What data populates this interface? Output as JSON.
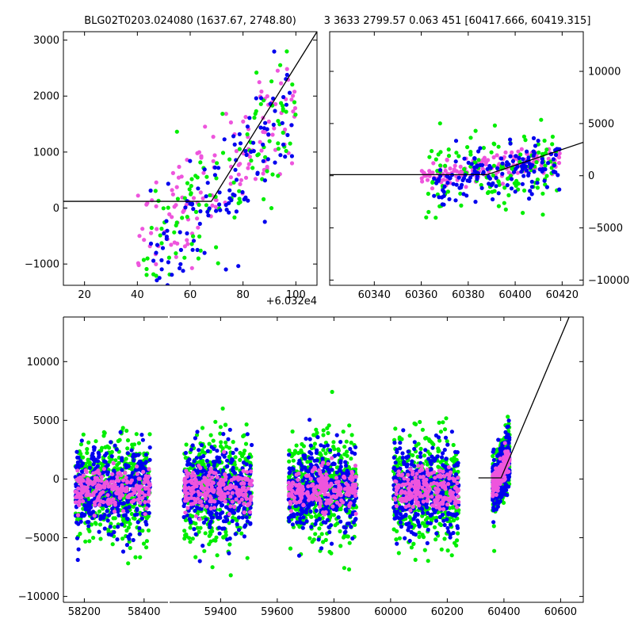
{
  "title_left": "BLG02T0203.024080 (1637.67, 2748.80)",
  "title_right": "3 3633 2799.57 0.063 451 [60417.666, 60419.315]",
  "colors": {
    "blue": "#0000ee",
    "green": "#00ee00",
    "pink": "#ee55dd",
    "model": "#000000"
  },
  "chart_data": [
    {
      "id": "top-left",
      "type": "scatter",
      "xlim": [
        12,
        108
      ],
      "ylim": [
        -1380,
        3150
      ],
      "xticks": [
        20,
        40,
        60,
        80,
        100
      ],
      "xtick_labels": [
        "20",
        "40",
        "60",
        "80",
        "100"
      ],
      "yticks": [
        -1000,
        0,
        1000,
        2000,
        3000
      ],
      "ytick_labels": [
        "−1000",
        "0",
        "1000",
        "2000",
        "3000"
      ],
      "x_offset_label": "+6.032e4",
      "model": [
        [
          12,
          120
        ],
        [
          68,
          120
        ],
        [
          108,
          3150
        ]
      ],
      "clusters": [
        {
          "x": [
            40,
            100
          ],
          "y": [
            -1300,
            2600
          ],
          "trend": [
            60,
            100,
            100,
            2000
          ],
          "spread": 500,
          "n": 140,
          "color": "pink"
        },
        {
          "x": [
            42,
            100
          ],
          "y": [
            -1300,
            2400
          ],
          "trend": [
            60,
            0,
            100,
            1800
          ],
          "spread": 600,
          "n": 110,
          "color": "green"
        },
        {
          "x": [
            45,
            100
          ],
          "y": [
            -1300,
            2300
          ],
          "trend": [
            60,
            -400,
            100,
            1700
          ],
          "spread": 550,
          "n": 120,
          "color": "blue"
        }
      ]
    },
    {
      "id": "top-right",
      "type": "scatter",
      "xlim": [
        60321,
        60429
      ],
      "ylim": [
        -10500,
        13800
      ],
      "xticks": [
        60340,
        60360,
        60380,
        60400,
        60420
      ],
      "xtick_labels": [
        "60340",
        "60360",
        "60380",
        "60400",
        "60420"
      ],
      "yticks": [
        -10000,
        -5000,
        0,
        5000,
        10000
      ],
      "ytick_labels": [
        "−10000",
        "−5000",
        "0",
        "5000",
        "10000"
      ],
      "model": [
        [
          60321,
          100
        ],
        [
          60388,
          100
        ],
        [
          60429,
          3200
        ]
      ],
      "clusters": [
        {
          "x": [
            60360,
            60419
          ],
          "y": [
            -1500,
            3500
          ],
          "trend": [
            60360,
            -300,
            60419,
            1800
          ],
          "spread": 600,
          "n": 180,
          "color": "pink"
        },
        {
          "x": [
            60362,
            60419
          ],
          "y": [
            -10000,
            8000
          ],
          "trend": [
            60360,
            -800,
            60419,
            1300
          ],
          "spread": 1800,
          "n": 130,
          "color": "green"
        },
        {
          "x": [
            60365,
            60419
          ],
          "y": [
            -10000,
            7000
          ],
          "trend": [
            60360,
            -1000,
            60419,
            1200
          ],
          "spread": 1200,
          "n": 150,
          "color": "blue"
        }
      ]
    },
    {
      "id": "bottom",
      "type": "scatter",
      "ylim": [
        -10500,
        13800
      ],
      "yticks": [
        -10000,
        -5000,
        0,
        5000,
        10000
      ],
      "ytick_labels": [
        "−10000",
        "−5000",
        "0",
        "5000",
        "10000"
      ],
      "segments": [
        {
          "xlim": [
            58130,
            58480
          ],
          "xticks": [
            58200,
            58400
          ],
          "xtick_labels": [
            "58200",
            "58400"
          ],
          "data_x": [
            58170,
            58420
          ]
        },
        {
          "xlim": [
            59220,
            60680
          ],
          "xticks": [
            59400,
            59600,
            59800,
            60000,
            60200,
            60400,
            60600
          ],
          "xtick_labels": [
            "59400",
            "59600",
            "59800",
            "60000",
            "60200",
            "60400",
            "60600"
          ],
          "data_x": [
            [
              59270,
              59510
            ],
            [
              59640,
              59880
            ],
            [
              60010,
              60240
            ],
            [
              60360,
              60420
            ]
          ]
        }
      ],
      "model": [
        [
          60310,
          100
        ],
        [
          60390,
          100
        ],
        [
          60630,
          13800
        ]
      ],
      "seasons": [
        {
          "seg": 0,
          "x": [
            58170,
            58420
          ]
        },
        {
          "seg": 1,
          "x": [
            59270,
            59510
          ]
        },
        {
          "seg": 1,
          "x": [
            59640,
            59880
          ]
        },
        {
          "seg": 1,
          "x": [
            60010,
            60240
          ]
        },
        {
          "seg": 1,
          "x": [
            60360,
            60420
          ]
        }
      ]
    }
  ]
}
